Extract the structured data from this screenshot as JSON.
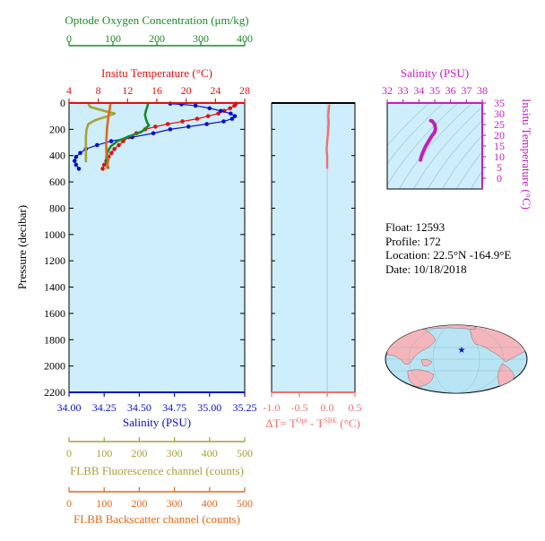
{
  "colors": {
    "oxygen": "#1a8a2a",
    "temperature": "#e01010",
    "salinity": "#0a10c8",
    "fluorescence": "#a8a038",
    "backscatter": "#e06818",
    "delta_t": "#f07070",
    "ts_salinity": "#c020c0",
    "plot_bg": "#cdeefa",
    "ocean": "#b8e4f4",
    "land": "#f4b6bc"
  },
  "float_info": {
    "float": "Float:  12593",
    "profile": "Profile:  172",
    "location": "Location:  22.5°N  -164.9°E",
    "date": "Date:  10/18/2018"
  },
  "chart_data": [
    {
      "type": "line",
      "id": "main-profile",
      "ylabel": "Pressure (decibar)",
      "ylim": [
        2200,
        0
      ],
      "yticks": [
        "0",
        "200",
        "400",
        "600",
        "800",
        "1000",
        "1200",
        "1400",
        "1600",
        "1800",
        "2000",
        "2200"
      ],
      "axes": {
        "oxygen": {
          "title": "Optode Oxygen Concentration (μm/kg)",
          "range": [
            0,
            400
          ],
          "ticks": [
            "0",
            "100",
            "200",
            "300",
            "400"
          ]
        },
        "temperature": {
          "title": "Insitu Temperature (°C)",
          "range": [
            4,
            28
          ],
          "ticks": [
            "4",
            "8",
            "12",
            "16",
            "20",
            "24",
            "28"
          ]
        },
        "salinity": {
          "title": "Salinity (PSU)",
          "range": [
            34.0,
            35.25
          ],
          "ticks": [
            "34.00",
            "34.25",
            "34.50",
            "34.75",
            "35.00",
            "35.25"
          ]
        },
        "fluorescence": {
          "title": "FLBB Fluorescence channel (counts)",
          "range": [
            0,
            500
          ],
          "ticks": [
            "0",
            "100",
            "200",
            "300",
            "400",
            "500"
          ]
        },
        "backscatter": {
          "title": "FLBB Backscatter channel (counts)",
          "range": [
            0,
            500
          ],
          "ticks": [
            "0",
            "100",
            "200",
            "300",
            "400",
            "500"
          ]
        }
      },
      "series": [
        {
          "key": "temperature",
          "style": "dots",
          "values": [
            [
              26.8,
              5
            ],
            [
              26.6,
              20
            ],
            [
              26.0,
              40
            ],
            [
              25.2,
              60
            ],
            [
              24.4,
              80
            ],
            [
              23.0,
              100
            ],
            [
              21.5,
              120
            ],
            [
              19.5,
              140
            ],
            [
              17.5,
              160
            ],
            [
              15.8,
              180
            ],
            [
              14.4,
              200
            ],
            [
              13.2,
              230
            ],
            [
              12.2,
              260
            ],
            [
              11.4,
              290
            ],
            [
              10.8,
              320
            ],
            [
              10.2,
              350
            ],
            [
              9.8,
              380
            ],
            [
              9.4,
              410
            ],
            [
              9.1,
              440
            ],
            [
              8.8,
              470
            ],
            [
              8.6,
              500
            ]
          ]
        },
        {
          "key": "salinity",
          "style": "dots",
          "values": [
            [
              34.72,
              5
            ],
            [
              34.8,
              10
            ],
            [
              34.9,
              20
            ],
            [
              35.0,
              40
            ],
            [
              35.08,
              60
            ],
            [
              35.15,
              80
            ],
            [
              35.18,
              100
            ],
            [
              35.16,
              120
            ],
            [
              35.1,
              140
            ],
            [
              34.98,
              160
            ],
            [
              34.85,
              180
            ],
            [
              34.72,
              200
            ],
            [
              34.6,
              230
            ],
            [
              34.45,
              260
            ],
            [
              34.3,
              290
            ],
            [
              34.2,
              320
            ],
            [
              34.12,
              350
            ],
            [
              34.08,
              380
            ],
            [
              34.05,
              410
            ],
            [
              34.04,
              440
            ],
            [
              34.05,
              470
            ],
            [
              34.07,
              500
            ]
          ]
        },
        {
          "key": "oxygen",
          "style": "line",
          "values": [
            [
              180,
              5
            ],
            [
              178,
              30
            ],
            [
              175,
              60
            ],
            [
              173,
              90
            ],
            [
              175,
              120
            ],
            [
              178,
              150
            ],
            [
              182,
              170
            ],
            [
              175,
              190
            ],
            [
              165,
              220
            ],
            [
              140,
              250
            ],
            [
              110,
              290
            ],
            [
              95,
              330
            ],
            [
              88,
              370
            ],
            [
              85,
              410
            ],
            [
              86,
              450
            ],
            [
              88,
              480
            ],
            [
              90,
              500
            ]
          ]
        },
        {
          "key": "fluorescence",
          "style": "line",
          "values": [
            [
              55,
              5
            ],
            [
              60,
              30
            ],
            [
              100,
              60
            ],
            [
              130,
              80
            ],
            [
              110,
              100
            ],
            [
              75,
              130
            ],
            [
              55,
              160
            ],
            [
              50,
              200
            ],
            [
              48,
              250
            ],
            [
              48,
              300
            ],
            [
              48,
              350
            ],
            [
              48,
              400
            ],
            [
              48,
              450
            ]
          ]
        },
        {
          "key": "backscatter",
          "style": "line",
          "values": [
            [
              118,
              5
            ],
            [
              115,
              60
            ],
            [
              112,
              100
            ],
            [
              110,
              150
            ],
            [
              108,
              200
            ],
            [
              107,
              250
            ],
            [
              106,
              300
            ],
            [
              106,
              350
            ],
            [
              107,
              400
            ],
            [
              112,
              430
            ],
            [
              110,
              460
            ],
            [
              108,
              500
            ]
          ]
        }
      ]
    },
    {
      "type": "line",
      "id": "delta-t",
      "xlabel": "ΔT= T^Opt - T^SBE (°C)",
      "xlabel_parts": {
        "a": "ΔT= T",
        "b": "Opt",
        "c": " - T",
        "d": "SBE",
        "e": " (°C)"
      },
      "xlim": [
        -1.0,
        0.5
      ],
      "xticks": [
        "-1.0",
        "-0.5",
        "0.0",
        "0.5"
      ],
      "ylim": [
        2200,
        0
      ],
      "series": [
        {
          "key": "delta_t",
          "style": "line",
          "values": [
            [
              0.04,
              10
            ],
            [
              0.03,
              50
            ],
            [
              0.02,
              100
            ],
            [
              0.03,
              150
            ],
            [
              0.02,
              200
            ],
            [
              0.01,
              250
            ],
            [
              0.0,
              300
            ],
            [
              -0.01,
              350
            ],
            [
              0.0,
              400
            ],
            [
              0.0,
              450
            ],
            [
              0.0,
              500
            ]
          ]
        }
      ]
    },
    {
      "type": "line",
      "id": "ts-diagram",
      "xlabel": "Salinity (PSU)",
      "ylabel": "Insitu Temperature (°C)",
      "xlim": [
        32,
        38
      ],
      "ylim": [
        -5,
        35
      ],
      "xticks": [
        "32",
        "33",
        "34",
        "35",
        "36",
        "37",
        "38"
      ],
      "yticks": [
        "0",
        "5",
        "10",
        "15",
        "20",
        "25",
        "30",
        "35"
      ],
      "series": [
        {
          "key": "ts_salinity",
          "style": "line",
          "values": [
            [
              34.1,
              8.5
            ],
            [
              34.15,
              10
            ],
            [
              34.25,
              12
            ],
            [
              34.4,
              14.5
            ],
            [
              34.6,
              17
            ],
            [
              34.8,
              19.5
            ],
            [
              35.0,
              21.5
            ],
            [
              35.05,
              23
            ],
            [
              35.0,
              25
            ],
            [
              34.85,
              26.5
            ],
            [
              34.75,
              26.8
            ]
          ]
        }
      ]
    }
  ]
}
